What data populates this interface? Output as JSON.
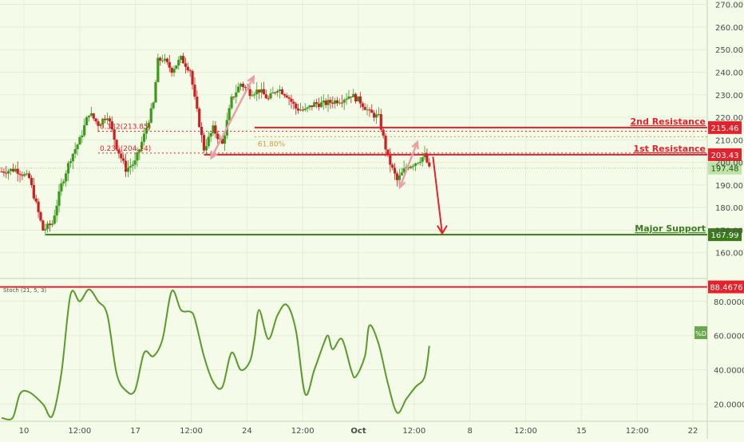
{
  "chart_data": [
    {
      "type": "candlestick",
      "title": "",
      "xlabel": "",
      "ylabel": "",
      "ylim": [
        150,
        272
      ],
      "price_ticks": [
        "270.00",
        "260.00",
        "250.00",
        "240.00",
        "230.00",
        "220.00",
        "210.00",
        "200.00",
        "190.00",
        "180.00",
        "170.00",
        "160.00"
      ],
      "x_ticks": [
        "10",
        "12:00",
        "17",
        "12:00",
        "24",
        "12:00",
        "Oct",
        "12:00",
        "8",
        "12:00",
        "15",
        "12:00",
        "22"
      ],
      "x_tick_positions": [
        1.0,
        1.5,
        2.0,
        2.5,
        3.0,
        3.5,
        4.0,
        4.5,
        5.0,
        5.5,
        6.0,
        6.5,
        7.0
      ],
      "anchors": [
        [
          0.0,
          196
        ],
        [
          0.15,
          197
        ],
        [
          0.3,
          193
        ],
        [
          0.45,
          170
        ],
        [
          0.55,
          173
        ],
        [
          0.65,
          190
        ],
        [
          0.75,
          202
        ],
        [
          0.85,
          210
        ],
        [
          0.95,
          222
        ],
        [
          1.05,
          217
        ],
        [
          1.15,
          221
        ],
        [
          1.25,
          207
        ],
        [
          1.35,
          197
        ],
        [
          1.45,
          200
        ],
        [
          1.55,
          212
        ],
        [
          1.65,
          226
        ],
        [
          1.7,
          245
        ],
        [
          1.75,
          246
        ],
        [
          1.85,
          241
        ],
        [
          1.95,
          246
        ],
        [
          2.05,
          241
        ],
        [
          2.1,
          228
        ],
        [
          2.2,
          206
        ],
        [
          2.3,
          215
        ],
        [
          2.4,
          208
        ],
        [
          2.5,
          228
        ],
        [
          2.6,
          235
        ],
        [
          2.7,
          231
        ],
        [
          2.8,
          232
        ],
        [
          2.9,
          228
        ],
        [
          3.0,
          233
        ],
        [
          3.1,
          230
        ],
        [
          3.2,
          224
        ],
        [
          3.3,
          223
        ],
        [
          3.4,
          226
        ],
        [
          3.5,
          226
        ],
        [
          3.6,
          227
        ],
        [
          3.7,
          228
        ],
        [
          3.8,
          230
        ],
        [
          3.9,
          227
        ],
        [
          4.0,
          222
        ],
        [
          4.1,
          220
        ],
        [
          4.2,
          202
        ],
        [
          4.3,
          192
        ],
        [
          4.4,
          198
        ],
        [
          4.5,
          200
        ],
        [
          4.6,
          203
        ],
        [
          4.65,
          197
        ]
      ],
      "fib_levels": [
        {
          "label": "0.382(213.85)",
          "value": 213.85
        },
        {
          "label": "0.236(204.14)",
          "value": 204.14
        },
        {
          "label": "61.80%",
          "value": 211.4
        }
      ],
      "levels": [
        {
          "label": "2nd Resistance",
          "value": 215.46,
          "tag": "215.46",
          "color": "#e5222c"
        },
        {
          "label": "1st Resistance",
          "value": 203.43,
          "tag": "203.43",
          "color": "#e5222c"
        },
        {
          "label": "Major Support",
          "value": 167.99,
          "tag": "167.99",
          "color": "#3b7a1d"
        }
      ],
      "current_price": {
        "value": 197.48,
        "tag": "197.48"
      },
      "colors": {
        "up": "#3b9a1a",
        "down": "#cc1f1f",
        "resistance": "#e5222c",
        "support": "#3b7a1d",
        "arrow": "#e5222c",
        "channel": "#e8a0a6"
      }
    },
    {
      "type": "line",
      "title": "Stoch (21, 5, 3)",
      "ylim": [
        10,
        92
      ],
      "ticks": [
        "80.0000",
        "60.0000",
        "40.0000",
        "20.0000"
      ],
      "level": {
        "value": 88.4676,
        "tag": "88.4676"
      },
      "badge": "%D",
      "series": [
        {
          "color": "#5a9a2a",
          "points": [
            [
              0.0,
              12
            ],
            [
              0.12,
              12
            ],
            [
              0.2,
              26
            ],
            [
              0.3,
              27
            ],
            [
              0.45,
              20
            ],
            [
              0.55,
              13
            ],
            [
              0.65,
              38
            ],
            [
              0.75,
              84
            ],
            [
              0.85,
              80
            ],
            [
              0.95,
              87
            ],
            [
              1.05,
              80
            ],
            [
              1.15,
              72
            ],
            [
              1.25,
              38
            ],
            [
              1.35,
              28
            ],
            [
              1.45,
              28
            ],
            [
              1.55,
              50
            ],
            [
              1.65,
              48
            ],
            [
              1.75,
              58
            ],
            [
              1.85,
              86
            ],
            [
              1.95,
              75
            ],
            [
              2.05,
              74
            ],
            [
              2.1,
              70
            ],
            [
              2.2,
              48
            ],
            [
              2.3,
              33
            ],
            [
              2.4,
              30
            ],
            [
              2.5,
              50
            ],
            [
              2.6,
              40
            ],
            [
              2.7,
              45
            ],
            [
              2.75,
              58
            ],
            [
              2.8,
              75
            ],
            [
              2.9,
              58
            ],
            [
              3.0,
              72
            ],
            [
              3.1,
              78
            ],
            [
              3.2,
              63
            ],
            [
              3.3,
              26
            ],
            [
              3.4,
              40
            ],
            [
              3.5,
              55
            ],
            [
              3.55,
              60
            ],
            [
              3.6,
              52
            ],
            [
              3.7,
              58
            ],
            [
              3.8,
              40
            ],
            [
              3.85,
              36
            ],
            [
              3.95,
              48
            ],
            [
              4.0,
              66
            ],
            [
              4.1,
              55
            ],
            [
              4.2,
              32
            ],
            [
              4.3,
              15
            ],
            [
              4.4,
              23
            ],
            [
              4.5,
              30
            ],
            [
              4.6,
              36
            ],
            [
              4.65,
              54
            ]
          ]
        }
      ]
    }
  ]
}
